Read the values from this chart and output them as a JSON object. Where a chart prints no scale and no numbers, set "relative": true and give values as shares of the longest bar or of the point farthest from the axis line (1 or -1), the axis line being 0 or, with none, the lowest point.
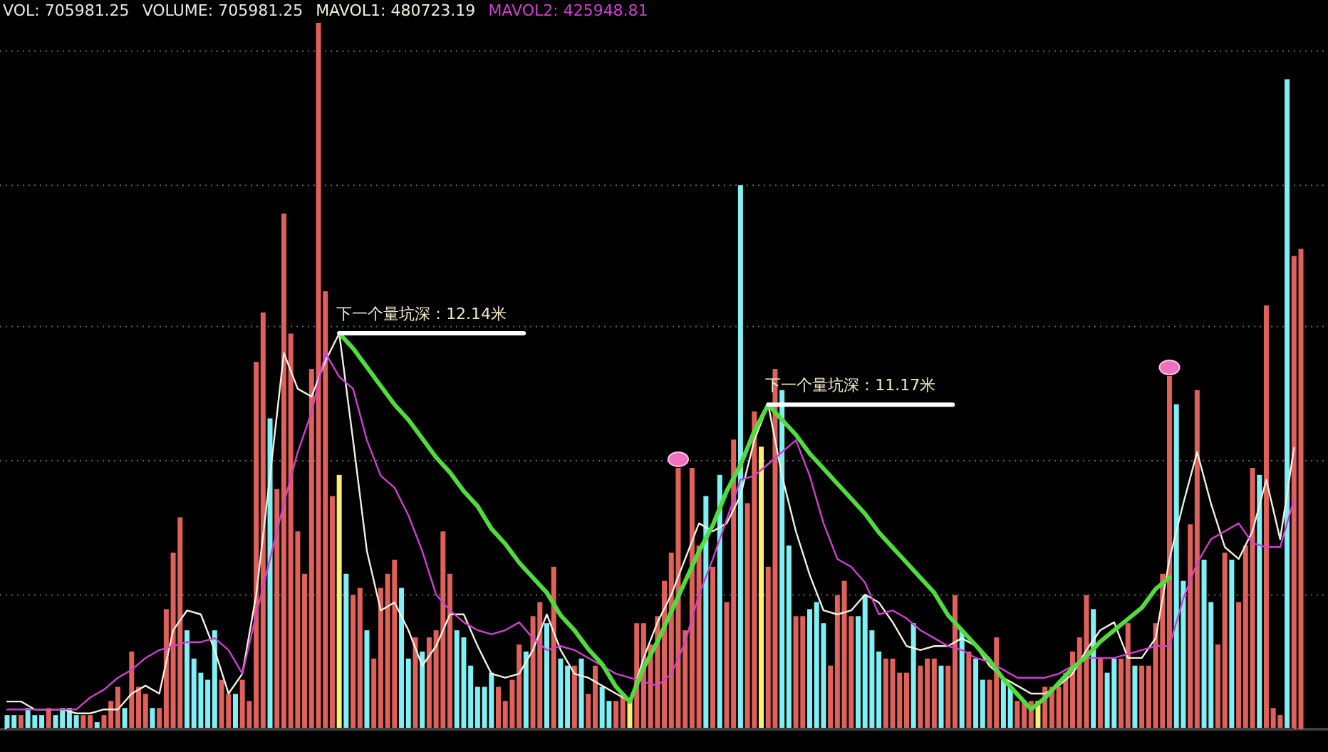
{
  "chart_data": [
    {
      "type": "bar",
      "relative": true,
      "categories": [
        null,
        null,
        null,
        null,
        null,
        null,
        null,
        null,
        null,
        null,
        null,
        null,
        null,
        null,
        null,
        null,
        null,
        null,
        null,
        null,
        null,
        null,
        null,
        null,
        null,
        null,
        null,
        null,
        null,
        null,
        null,
        null,
        null,
        null,
        null,
        null,
        null,
        null,
        null,
        null,
        null,
        null,
        null,
        null,
        null,
        null,
        null,
        null,
        null,
        null,
        null,
        null,
        null,
        null,
        null,
        null,
        null,
        null,
        null,
        null,
        null,
        null,
        null,
        null,
        null,
        null,
        null,
        null,
        null,
        null,
        null,
        null,
        null,
        null,
        null,
        null,
        null,
        null,
        null,
        null,
        null,
        null,
        null,
        null,
        null,
        null,
        null,
        null,
        null,
        null,
        null,
        null,
        null,
        null,
        null,
        null,
        null,
        null,
        null,
        null,
        null,
        null,
        null,
        null,
        null,
        null,
        null,
        null,
        null,
        null,
        null,
        null,
        null,
        null,
        null,
        null,
        null,
        null,
        null,
        null,
        null,
        null,
        null,
        null,
        null,
        null,
        null,
        null,
        null,
        null,
        null,
        null,
        null,
        null,
        null,
        null,
        null,
        null,
        null,
        null,
        null,
        null,
        null,
        null,
        null,
        null,
        null,
        null,
        null,
        null,
        null,
        null,
        null,
        null,
        null,
        null,
        null,
        null,
        null,
        null,
        null,
        null,
        null,
        null,
        null,
        null,
        null,
        null,
        null,
        null,
        null,
        null,
        null,
        null,
        null,
        null,
        null,
        null,
        null,
        null,
        null,
        null,
        null,
        null,
        null,
        null,
        null,
        null
      ],
      "series": [
        {
          "values": [
            0.02,
            0.02,
            0.02,
            0.03,
            0.02,
            0.02,
            0.03,
            0.02,
            0.03,
            0.03,
            0.02,
            0.02,
            0.02,
            0.01,
            0.02,
            0.04,
            0.06,
            0.03,
            0.11,
            0.06,
            0.05,
            0.03,
            0.03,
            0.17,
            0.25,
            0.3,
            0.14,
            0.1,
            0.08,
            0.07,
            0.14,
            0.07,
            0.05,
            0.05,
            0.07,
            0.04,
            0.52,
            0.59,
            0.44,
            0.34,
            0.73,
            0.56,
            0.28,
            0.22,
            0.51,
            1,
            0.62,
            0.33,
            0.36,
            0.22,
            0.19,
            0.2,
            0.14,
            0.1,
            0.2,
            0.22,
            0.24,
            0.2,
            0.1,
            0.13,
            0.11,
            0.13,
            0.14,
            0.28,
            0.22,
            0.14,
            0.13,
            0.09,
            0.06,
            0.06,
            0.08,
            0.06,
            0.04,
            0.07,
            0.12,
            0.11,
            0.16,
            0.18,
            0.15,
            0.23,
            0.1,
            0.09,
            0.09,
            0.1,
            0.05,
            0.09,
            0.06,
            0.04,
            0.04,
            0.05,
            0.04,
            0.15,
            0.15,
            0.12,
            0.16,
            0.21,
            0.25,
            0.37,
            0.14,
            0.37,
            0.26,
            0.33,
            0.23,
            0.36,
            0.18,
            0.41,
            0.77,
            0.32,
            0.45,
            0.4,
            0.23,
            0.51,
            0.48,
            0.26,
            0.16,
            0.16,
            0.17,
            0.18,
            0.15,
            0.09,
            0.19,
            0.21,
            0.16,
            0.16,
            0.19,
            0.14,
            0.11,
            0.1,
            0.1,
            0.08,
            0.08,
            0.15,
            0.09,
            0.1,
            0.1,
            0.09,
            0.09,
            0.19,
            0.14,
            0.11,
            0.1,
            0.07,
            0.07,
            0.13,
            0.07,
            0.06,
            0.04,
            0.04,
            0.04,
            0.04,
            0.06,
            0.06,
            0.06,
            0.08,
            0.11,
            0.13,
            0.19,
            0.17,
            0.1,
            0.08,
            0.1,
            0.1,
            0.15,
            0.09,
            0.09,
            0.09,
            0.15,
            0.22,
            0.5,
            0.46,
            0.21,
            0.29,
            0.48,
            0.24,
            0.18,
            0.12,
            0.25,
            0.24,
            0.18,
            0.26,
            0.37,
            0.36,
            0.6,
            0.03,
            0.02,
            0.92,
            0.67,
            0.68
          ],
          "colors": [
            "#7ff0f5",
            "#7ff0f5",
            "#e0605a",
            "#7ff0f5",
            "#7ff0f5",
            "#7ff0f5",
            "#e0605a",
            "#7ff0f5",
            "#7ff0f5",
            "#7ff0f5",
            "#7ff0f5",
            "#e0605a",
            "#e0605a",
            "#7ff0f5",
            "#e0605a",
            "#e0605a",
            "#e0605a",
            "#7ff0f5",
            "#e0605a",
            "#e0605a",
            "#e0605a",
            "#7ff0f5",
            "#e0605a",
            "#e0605a",
            "#e0605a",
            "#e0605a",
            "#7ff0f5",
            "#7ff0f5",
            "#7ff0f5",
            "#7ff0f5",
            "#7ff0f5",
            "#e0605a",
            "#e0605a",
            "#7ff0f5",
            "#e0605a",
            "#e0605a",
            "#e0605a",
            "#e0605a",
            "#7ff0f5",
            "#e0605a",
            "#e0605a",
            "#e0605a",
            "#e0605a",
            "#e0605a",
            "#e0605a",
            "#e0605a",
            "#e0605a",
            "#e0605a",
            "#f8f070",
            "#7ff0f5",
            "#e0605a",
            "#e0605a",
            "#7ff0f5",
            "#e0605a",
            "#e0605a",
            "#e0605a",
            "#e0605a",
            "#7ff0f5",
            "#7ff0f5",
            "#e0605a",
            "#7ff0f5",
            "#e0605a",
            "#e0605a",
            "#e0605a",
            "#e0605a",
            "#7ff0f5",
            "#7ff0f5",
            "#7ff0f5",
            "#7ff0f5",
            "#7ff0f5",
            "#7ff0f5",
            "#e0605a",
            "#e0605a",
            "#e0605a",
            "#e0605a",
            "#7ff0f5",
            "#e0605a",
            "#e0605a",
            "#7ff0f5",
            "#e0605a",
            "#7ff0f5",
            "#7ff0f5",
            "#e0605a",
            "#7ff0f5",
            "#e0605a",
            "#e0605a",
            "#7ff0f5",
            "#7ff0f5",
            "#e0605a",
            "#e0605a",
            "#f8f070",
            "#e0605a",
            "#e0605a",
            "#e0605a",
            "#e0605a",
            "#e0605a",
            "#e0605a",
            "#e0605a",
            "#e0605a",
            "#e0605a",
            "#e0605a",
            "#7ff0f5",
            "#e0605a",
            "#7ff0f5",
            "#e0605a",
            "#e0605a",
            "#7ff0f5",
            "#e0605a",
            "#e0605a",
            "#f8f070",
            "#e0605a",
            "#e0605a",
            "#7ff0f5",
            "#7ff0f5",
            "#e0605a",
            "#e0605a",
            "#7ff0f5",
            "#7ff0f5",
            "#7ff0f5",
            "#e0605a",
            "#e0605a",
            "#e0605a",
            "#e0605a",
            "#7ff0f5",
            "#7ff0f5",
            "#7ff0f5",
            "#7ff0f5",
            "#e0605a",
            "#e0605a",
            "#e0605a",
            "#e0605a",
            "#7ff0f5",
            "#e0605a",
            "#e0605a",
            "#e0605a",
            "#7ff0f5",
            "#e0605a",
            "#e0605a",
            "#7ff0f5",
            "#e0605a",
            "#7ff0f5",
            "#7ff0f5",
            "#e0605a",
            "#e0605a",
            "#7ff0f5",
            "#7ff0f5",
            "#e0605a",
            "#e0605a",
            "#e0605a",
            "#f8f070",
            "#e0605a",
            "#e0605a",
            "#e0605a",
            "#e0605a",
            "#e0605a",
            "#e0605a",
            "#e0605a",
            "#7ff0f5",
            "#e0605a",
            "#7ff0f5",
            "#7ff0f5",
            "#e0605a",
            "#e0605a",
            "#7ff0f5",
            "#e0605a",
            "#e0605a",
            "#e0605a",
            "#e0605a",
            "#e0605a",
            "#7ff0f5",
            "#7ff0f5",
            "#e0605a",
            "#e0605a",
            "#7ff0f5",
            "#7ff0f5",
            "#e0605a",
            "#e0605a",
            "#7ff0f5",
            "#e0605a",
            "#e0605a",
            "#e0605a",
            "#7ff0f5",
            "#e0605a",
            "#e0605a",
            "#e0605a",
            "#7ff0f5",
            "#e0605a",
            "#e0605a"
          ]
        }
      ],
      "annotations": [
        "VOL: 705981.25",
        "VOLUME: 705981.25",
        "MAVOL1: 480723.19",
        "MAVOL2: 425948.81"
      ],
      "ref_lines": [
        {
          "axis": "y",
          "value": 0.19,
          "color": "#606060",
          "line_style": "dotted"
        },
        {
          "axis": "y",
          "value": 0.38,
          "color": "#606060",
          "line_style": "dotted"
        },
        {
          "axis": "y",
          "value": 0.57,
          "color": "#606060",
          "line_style": "dotted"
        },
        {
          "axis": "y",
          "value": 0.77,
          "color": "#606060",
          "line_style": "dotted"
        },
        {
          "axis": "y",
          "value": 0.96,
          "color": "#606060",
          "line_style": "dotted"
        }
      ]
    },
    {
      "type": "line",
      "relative": true,
      "categories": [
        null,
        null,
        null,
        null,
        null,
        null,
        null,
        null,
        null,
        null,
        null,
        null,
        null,
        null,
        null,
        null,
        null,
        null,
        null,
        null,
        null,
        null,
        null,
        null,
        null,
        null,
        null,
        null,
        null,
        null,
        null,
        null,
        null,
        null,
        null,
        null,
        null,
        null,
        null,
        null,
        null,
        null,
        null,
        null,
        null,
        null,
        null,
        null,
        null,
        null,
        null,
        null,
        null,
        null,
        null,
        null,
        null,
        null,
        null,
        null,
        null,
        null,
        null,
        null,
        null,
        null,
        null,
        null,
        null,
        null,
        null,
        null,
        null,
        null,
        null,
        null,
        null,
        null,
        null,
        null,
        null,
        null,
        null,
        null,
        null,
        null,
        null,
        null,
        null,
        null,
        null,
        null,
        null,
        null
      ],
      "series": [
        {
          "color": "#f4f0e0",
          "values": [
            0.07,
            0.07,
            0.05,
            0.05,
            0.05,
            0.04,
            0.04,
            0.05,
            0.05,
            0.09,
            0.11,
            0.09,
            0.25,
            0.3,
            0.29,
            0.2,
            0.09,
            0.14,
            0.34,
            0.64,
            0.95,
            0.86,
            0.84,
            0.93,
            1,
            0.73,
            0.45,
            0.3,
            0.32,
            0.25,
            0.16,
            0.21,
            0.29,
            0.29,
            0.21,
            0.14,
            0.13,
            0.14,
            0.2,
            0.29,
            0.2,
            0.14,
            0.13,
            0.11,
            0.09,
            0.07,
            0.18,
            0.27,
            0.34,
            0.43,
            0.52,
            0.5,
            0.52,
            0.59,
            0.73,
            0.82,
            0.64,
            0.5,
            0.39,
            0.3,
            0.29,
            0.3,
            0.34,
            0.32,
            0.27,
            0.21,
            0.2,
            0.21,
            0.21,
            0.23,
            0.21,
            0.16,
            0.13,
            0.11,
            0.09,
            0.09,
            0.11,
            0.14,
            0.2,
            0.25,
            0.27,
            0.18,
            0.18,
            0.23,
            0.43,
            0.57,
            0.7,
            0.57,
            0.46,
            0.43,
            0.5,
            0.63,
            0.48,
            0.71
          ]
        },
        {
          "color": "#d040d0",
          "values": [
            0.05,
            0.05,
            0.05,
            0.05,
            0.05,
            0.05,
            0.08,
            0.1,
            0.13,
            0.15,
            0.18,
            0.2,
            0.21,
            0.22,
            0.22,
            0.23,
            0.2,
            0.14,
            0.29,
            0.43,
            0.57,
            0.7,
            0.8,
            0.95,
            0.89,
            0.86,
            0.73,
            0.64,
            0.61,
            0.54,
            0.45,
            0.34,
            0.3,
            0.27,
            0.25,
            0.24,
            0.25,
            0.27,
            0.23,
            0.2,
            0.21,
            0.2,
            0.18,
            0.16,
            0.14,
            0.13,
            0.12,
            0.11,
            0.14,
            0.22,
            0.34,
            0.43,
            0.53,
            0.63,
            0.64,
            0.67,
            0.7,
            0.73,
            0.64,
            0.52,
            0.43,
            0.41,
            0.37,
            0.29,
            0.3,
            0.28,
            0.25,
            0.23,
            0.21,
            0.2,
            0.18,
            0.17,
            0.15,
            0.13,
            0.13,
            0.13,
            0.14,
            0.16,
            0.18,
            0.18,
            0.18,
            0.19,
            0.2,
            0.21,
            0.21,
            0.33,
            0.42,
            0.48,
            0.5,
            0.52,
            0.47,
            0.46,
            0.46,
            0.58
          ]
        }
      ]
    },
    {
      "type": "line",
      "relative": true,
      "categories": [
        null,
        null,
        null,
        null,
        null,
        null,
        null,
        null,
        null,
        null,
        null,
        null,
        null,
        null,
        null,
        null,
        null,
        null,
        null,
        null,
        null,
        null,
        null,
        null,
        null,
        null,
        null,
        null,
        null,
        null,
        null,
        null,
        null,
        null,
        null,
        null,
        null,
        null,
        null,
        null,
        null,
        null,
        null,
        null,
        null,
        null,
        null,
        null,
        null,
        null,
        null,
        null,
        null,
        null,
        null,
        null,
        null,
        null,
        null,
        null,
        null
      ],
      "series": [
        {
          "color": "#50dc3c",
          "values": [
            1,
            0.96,
            0.91,
            0.86,
            0.81,
            0.77,
            0.72,
            0.67,
            0.63,
            0.58,
            0.54,
            0.48,
            0.44,
            0.39,
            0.35,
            0.31,
            0.25,
            0.21,
            0.16,
            0.12,
            0.06,
            0.02,
            0.11,
            0.18,
            0.26,
            0.34,
            0.42,
            0.49,
            0.58,
            0.65,
            0.74,
            0.81,
            0.77,
            0.73,
            0.68,
            0.64,
            0.6,
            0.56,
            0.52,
            0.47,
            0.43,
            0.39,
            0.35,
            0.31,
            0.25,
            0.21,
            0.17,
            0.13,
            0.08,
            0.04,
            0,
            0.03,
            0.07,
            0.11,
            0.14,
            0.18,
            0.21,
            0.24,
            0.27,
            0.32,
            0.35
          ]
        }
      ],
      "annotations": [
        "下一个量坑深：12.14米",
        "下一个量坑深：11.17米"
      ]
    }
  ]
}
